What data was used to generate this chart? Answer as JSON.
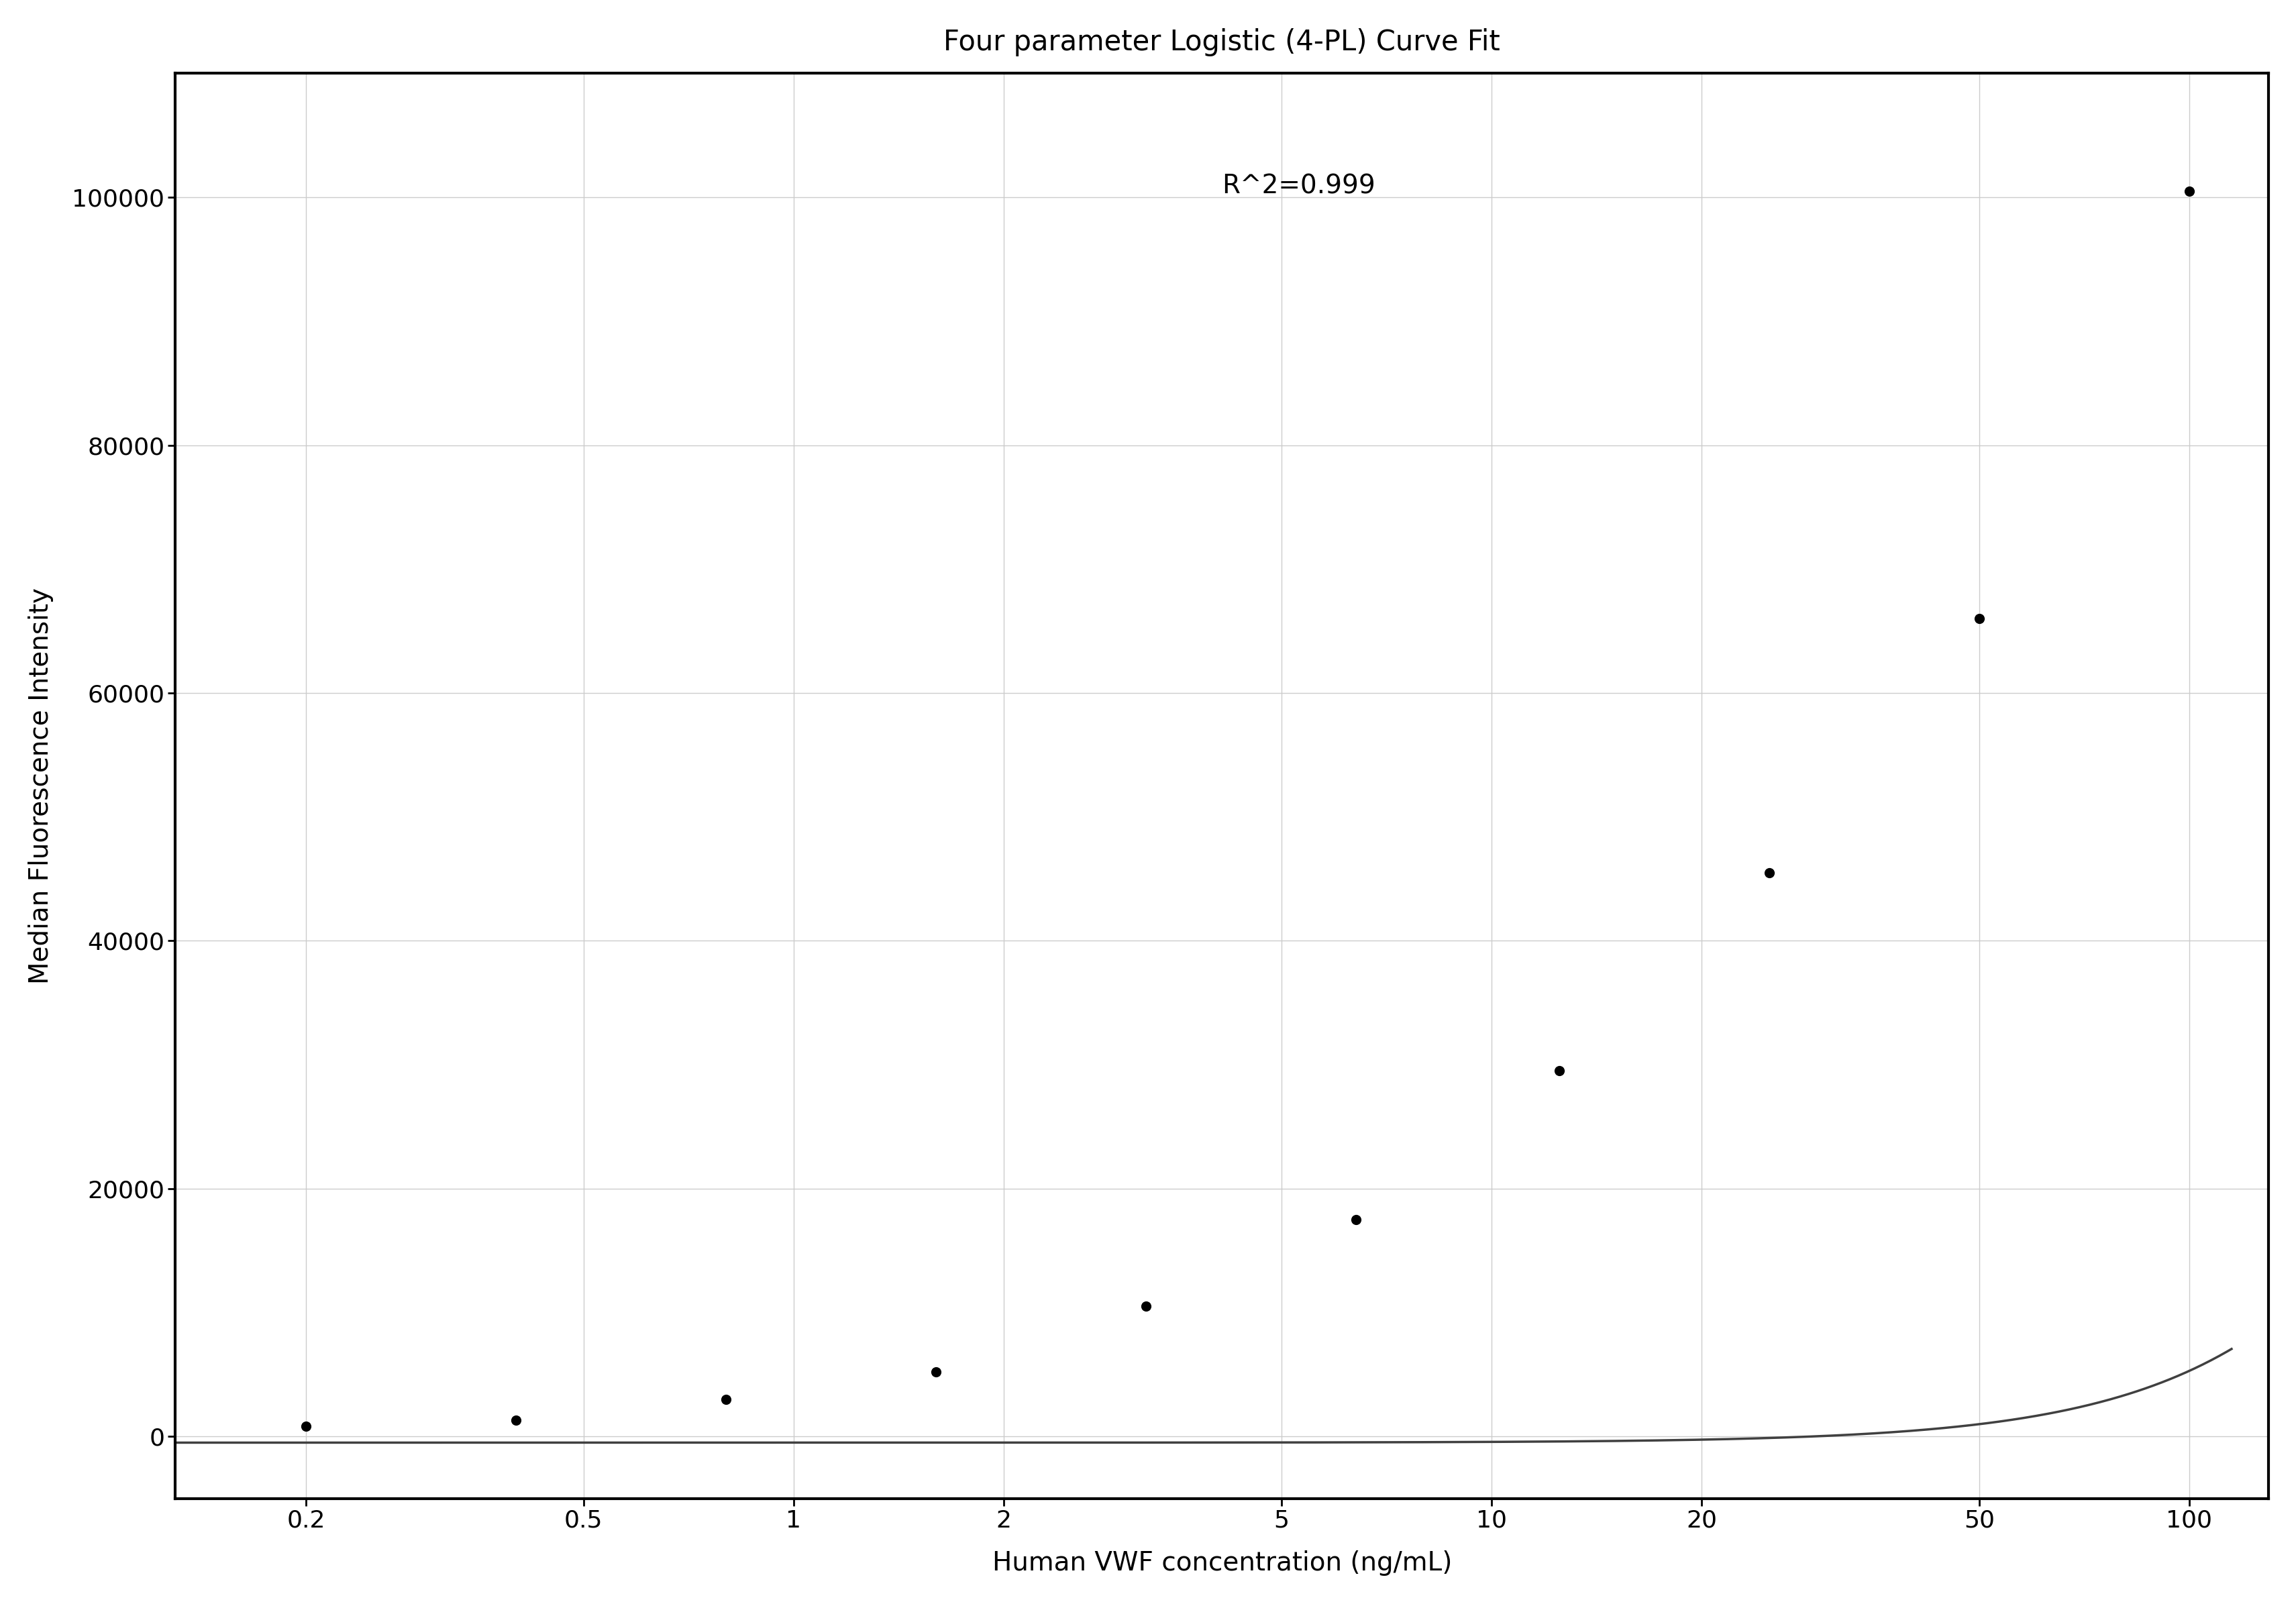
{
  "title": "Four parameter Logistic (4-PL) Curve Fit",
  "xlabel": "Human VWF concentration (ng/mL)",
  "ylabel": "Median Fluorescence Intensity",
  "annotation": "R^2=0.999",
  "data_x": [
    0.2,
    0.4,
    0.8,
    1.6,
    3.2,
    6.4,
    12.5,
    25,
    50,
    100
  ],
  "data_y": [
    800,
    1300,
    3000,
    5200,
    10500,
    17500,
    29500,
    45500,
    66000,
    100500
  ],
  "xlim": [
    0.13,
    130
  ],
  "ylim": [
    -5000,
    110000
  ],
  "xticks": [
    0.2,
    0.5,
    1,
    2,
    5,
    10,
    20,
    50,
    100
  ],
  "yticks": [
    0,
    20000,
    40000,
    60000,
    80000,
    100000
  ],
  "background_color": "#ffffff",
  "grid_color": "#cccccc",
  "curve_color": "#404040",
  "dot_color": "#000000",
  "dot_size": 120,
  "title_fontsize": 30,
  "label_fontsize": 28,
  "tick_fontsize": 26,
  "annotation_fontsize": 28
}
